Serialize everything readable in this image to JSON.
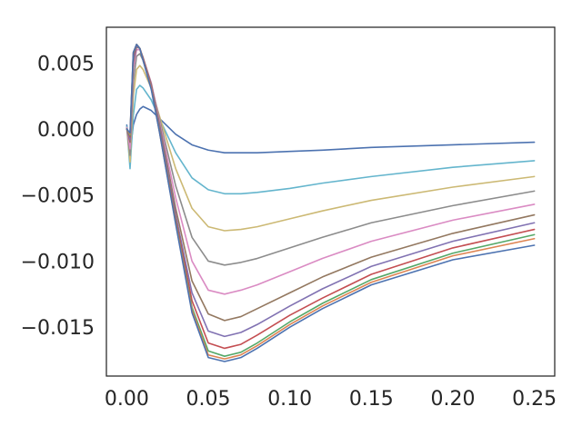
{
  "chart_data": {
    "type": "line",
    "title": "",
    "xlabel": "",
    "ylabel": "",
    "xlim": [
      -0.0125,
      0.2625
    ],
    "ylim": [
      -0.0187,
      0.0077
    ],
    "grid": false,
    "legend": "none",
    "x_ticks": [
      "0.00",
      "0.05",
      "0.10",
      "0.15",
      "0.20",
      "0.25"
    ],
    "x_tick_values": [
      0.0,
      0.05,
      0.1,
      0.15,
      0.2,
      0.25
    ],
    "y_ticks": [
      "0.005",
      "0.000",
      "−0.005",
      "−0.010",
      "−0.015"
    ],
    "y_tick_values": [
      0.005,
      0.0,
      -0.005,
      -0.01,
      -0.015
    ],
    "x": [
      0.0,
      0.002,
      0.004,
      0.006,
      0.008,
      0.01,
      0.015,
      0.02,
      0.03,
      0.04,
      0.05,
      0.06,
      0.07,
      0.08,
      0.1,
      0.12,
      0.15,
      0.2,
      0.25
    ],
    "series": [
      {
        "color": "#4c72b0",
        "values": [
          0.0003,
          -0.0018,
          0.0003,
          0.0011,
          0.0015,
          0.0017,
          0.0014,
          0.0008,
          -0.0004,
          -0.0012,
          -0.0016,
          -0.0018,
          -0.0018,
          -0.0018,
          -0.0017,
          -0.0016,
          -0.0014,
          -0.0012,
          -0.001
        ]
      },
      {
        "color": "#64b5cd",
        "values": [
          0.0002,
          -0.003,
          0.001,
          0.003,
          0.0033,
          0.0031,
          0.0022,
          0.0008,
          -0.0018,
          -0.0037,
          -0.0046,
          -0.0049,
          -0.0049,
          -0.0048,
          -0.0045,
          -0.0041,
          -0.0036,
          -0.0029,
          -0.0024
        ]
      },
      {
        "color": "#ccb974",
        "values": [
          0.0001,
          -0.0025,
          0.0025,
          0.0045,
          0.0048,
          0.0045,
          0.0031,
          0.001,
          -0.003,
          -0.006,
          -0.0074,
          -0.0077,
          -0.0076,
          -0.0074,
          -0.0068,
          -0.0062,
          -0.0054,
          -0.0044,
          -0.0036
        ]
      },
      {
        "color": "#8c8c8c",
        "values": [
          0.0001,
          -0.002,
          0.0035,
          0.0055,
          0.0057,
          0.0052,
          0.0034,
          0.0008,
          -0.0043,
          -0.0082,
          -0.01,
          -0.0103,
          -0.0101,
          -0.0098,
          -0.009,
          -0.0082,
          -0.0071,
          -0.0058,
          -0.0047
        ]
      },
      {
        "color": "#da8bc3",
        "values": [
          0.0001,
          -0.0015,
          0.0045,
          0.006,
          0.006,
          0.0054,
          0.0035,
          0.0006,
          -0.0052,
          -0.01,
          -0.0122,
          -0.0125,
          -0.0122,
          -0.0118,
          -0.0108,
          -0.0098,
          -0.0085,
          -0.0069,
          -0.0057
        ]
      },
      {
        "color": "#937860",
        "values": [
          0.0,
          -0.001,
          0.005,
          0.0062,
          0.0061,
          0.0054,
          0.0034,
          0.0004,
          -0.006,
          -0.0115,
          -0.014,
          -0.0145,
          -0.0142,
          -0.0136,
          -0.0124,
          -0.0112,
          -0.0097,
          -0.0079,
          -0.0065
        ]
      },
      {
        "color": "#8172b2",
        "values": [
          0.0,
          -0.0008,
          0.0052,
          0.0063,
          0.0061,
          0.0053,
          0.0033,
          0.0002,
          -0.0065,
          -0.0124,
          -0.0153,
          -0.0157,
          -0.0154,
          -0.0148,
          -0.0134,
          -0.0121,
          -0.0104,
          -0.0085,
          -0.0071
        ]
      },
      {
        "color": "#c44e52",
        "values": [
          0.0,
          -0.0006,
          0.0055,
          0.0064,
          0.0061,
          0.0053,
          0.0032,
          0.0,
          -0.0068,
          -0.013,
          -0.0162,
          -0.0166,
          -0.0163,
          -0.0156,
          -0.0141,
          -0.0128,
          -0.011,
          -0.009,
          -0.0076
        ]
      },
      {
        "color": "#55a868",
        "values": [
          0.0,
          -0.0005,
          0.0057,
          0.0064,
          0.0061,
          0.0052,
          0.0031,
          -0.0001,
          -0.007,
          -0.0135,
          -0.0168,
          -0.0172,
          -0.0169,
          -0.0162,
          -0.0146,
          -0.0132,
          -0.0114,
          -0.0094,
          -0.008
        ]
      },
      {
        "color": "#dd8452",
        "values": [
          0.0,
          -0.0004,
          0.0058,
          0.0064,
          0.0061,
          0.0052,
          0.0031,
          -0.0002,
          -0.0071,
          -0.0137,
          -0.0171,
          -0.0174,
          -0.0171,
          -0.0164,
          -0.0148,
          -0.0134,
          -0.0116,
          -0.0096,
          -0.0083
        ]
      },
      {
        "color": "#4c72b0",
        "values": [
          0.0,
          -0.0003,
          0.0058,
          0.0064,
          0.0061,
          0.0052,
          0.003,
          -0.0002,
          -0.0072,
          -0.0139,
          -0.0173,
          -0.0176,
          -0.0173,
          -0.0166,
          -0.015,
          -0.0136,
          -0.0118,
          -0.0099,
          -0.0088
        ]
      }
    ]
  }
}
